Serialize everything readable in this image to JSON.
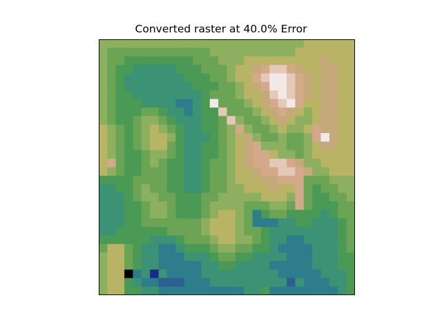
{
  "chart_data": {
    "type": "heatmap",
    "title": "Converted raster at 40.0% Error",
    "xlabel": "",
    "ylabel": "",
    "axes_visible": false,
    "grid": false,
    "colormap": "gist_earth",
    "colors": {
      "water_dark": "#1a2a8c",
      "water": "#2e7d8c",
      "low": "#4a9a55",
      "mid": "#b9b465",
      "high": "#d4a98a",
      "peak": "#f3eae8",
      "hole": "#000000"
    },
    "palette": [
      "#000000",
      "#1a2a8c",
      "#2c5f8f",
      "#2e7d8c",
      "#3b9275",
      "#4a9a55",
      "#6aa454",
      "#8db060",
      "#b9b465",
      "#c6a97a",
      "#d4a98a",
      "#e4c8b8",
      "#f3eae8"
    ],
    "grid_size": [
      30,
      30
    ],
    "values": [
      [
        7,
        7,
        7,
        7,
        7,
        7,
        7,
        7,
        7,
        7,
        7,
        7,
        7,
        7,
        7,
        7,
        7,
        7,
        7,
        7,
        7,
        7,
        7,
        7,
        8,
        8,
        8,
        8,
        8,
        8
      ],
      [
        7,
        6,
        6,
        6,
        6,
        6,
        6,
        6,
        6,
        6,
        6,
        6,
        6,
        7,
        7,
        7,
        7,
        7,
        7,
        7,
        7,
        7,
        7,
        8,
        8,
        8,
        8,
        8,
        8,
        8
      ],
      [
        7,
        6,
        6,
        5,
        5,
        5,
        5,
        5,
        5,
        5,
        5,
        6,
        6,
        6,
        7,
        7,
        7,
        8,
        8,
        8,
        8,
        8,
        8,
        8,
        8,
        8,
        9,
        8,
        8,
        8
      ],
      [
        7,
        6,
        5,
        5,
        4,
        4,
        4,
        4,
        4,
        5,
        5,
        5,
        6,
        6,
        6,
        7,
        8,
        8,
        9,
        10,
        11,
        11,
        10,
        9,
        8,
        8,
        9,
        9,
        8,
        8
      ],
      [
        7,
        6,
        5,
        4,
        4,
        4,
        4,
        4,
        4,
        4,
        5,
        5,
        5,
        6,
        6,
        7,
        8,
        8,
        10,
        11,
        12,
        12,
        11,
        10,
        9,
        8,
        9,
        9,
        8,
        8
      ],
      [
        7,
        6,
        5,
        4,
        4,
        4,
        4,
        4,
        4,
        4,
        4,
        5,
        5,
        5,
        6,
        6,
        7,
        8,
        9,
        10,
        12,
        12,
        11,
        10,
        9,
        8,
        9,
        9,
        8,
        8
      ],
      [
        7,
        6,
        5,
        5,
        4,
        4,
        4,
        4,
        4,
        4,
        4,
        4,
        5,
        6,
        6,
        6,
        7,
        8,
        8,
        9,
        11,
        12,
        11,
        10,
        9,
        8,
        9,
        9,
        8,
        8
      ],
      [
        7,
        6,
        5,
        5,
        5,
        4,
        4,
        4,
        4,
        3,
        3,
        4,
        5,
        12,
        6,
        6,
        6,
        7,
        8,
        9,
        10,
        11,
        12,
        10,
        8,
        8,
        9,
        9,
        8,
        8
      ],
      [
        7,
        6,
        5,
        5,
        5,
        6,
        6,
        5,
        4,
        4,
        3,
        4,
        5,
        5,
        11,
        6,
        6,
        6,
        7,
        8,
        9,
        10,
        9,
        8,
        7,
        8,
        9,
        9,
        8,
        8
      ],
      [
        7,
        6,
        5,
        5,
        6,
        7,
        7,
        6,
        5,
        4,
        4,
        4,
        5,
        5,
        6,
        11,
        7,
        6,
        6,
        7,
        8,
        9,
        8,
        7,
        7,
        8,
        9,
        9,
        8,
        8
      ],
      [
        8,
        7,
        6,
        5,
        6,
        7,
        8,
        7,
        6,
        5,
        4,
        4,
        5,
        5,
        6,
        7,
        10,
        7,
        6,
        6,
        7,
        8,
        7,
        7,
        8,
        10,
        9,
        9,
        8,
        8
      ],
      [
        8,
        7,
        6,
        5,
        6,
        7,
        8,
        8,
        7,
        5,
        4,
        4,
        4,
        5,
        6,
        7,
        8,
        9,
        7,
        6,
        6,
        7,
        6,
        6,
        7,
        10,
        12,
        9,
        8,
        8
      ],
      [
        8,
        7,
        6,
        5,
        6,
        7,
        8,
        8,
        6,
        5,
        4,
        4,
        5,
        5,
        6,
        7,
        8,
        9,
        10,
        7,
        7,
        7,
        6,
        6,
        7,
        8,
        9,
        9,
        8,
        8
      ],
      [
        8,
        7,
        6,
        5,
        5,
        6,
        7,
        7,
        6,
        5,
        4,
        4,
        5,
        5,
        6,
        7,
        8,
        9,
        10,
        10,
        8,
        7,
        7,
        6,
        7,
        8,
        8,
        8,
        8,
        8
      ],
      [
        8,
        10,
        6,
        5,
        5,
        6,
        7,
        6,
        5,
        5,
        4,
        4,
        5,
        6,
        6,
        7,
        8,
        9,
        10,
        10,
        11,
        11,
        10,
        9,
        7,
        7,
        8,
        8,
        8,
        8
      ],
      [
        8,
        7,
        6,
        5,
        5,
        6,
        6,
        6,
        5,
        5,
        4,
        4,
        5,
        6,
        6,
        7,
        8,
        8,
        9,
        10,
        10,
        11,
        11,
        10,
        9,
        7,
        7,
        8,
        8,
        8
      ],
      [
        5,
        5,
        5,
        5,
        6,
        6,
        6,
        6,
        5,
        5,
        4,
        4,
        5,
        6,
        6,
        7,
        8,
        8,
        8,
        9,
        9,
        10,
        10,
        10,
        6,
        6,
        6,
        7,
        7,
        7
      ],
      [
        4,
        4,
        5,
        5,
        6,
        7,
        6,
        6,
        5,
        5,
        4,
        4,
        5,
        6,
        6,
        7,
        7,
        8,
        8,
        8,
        9,
        8,
        8,
        10,
        6,
        5,
        6,
        6,
        7,
        7
      ],
      [
        4,
        4,
        4,
        5,
        6,
        7,
        7,
        6,
        6,
        5,
        5,
        5,
        6,
        6,
        7,
        7,
        7,
        7,
        7,
        8,
        8,
        8,
        7,
        10,
        6,
        5,
        5,
        6,
        6,
        7
      ],
      [
        4,
        4,
        4,
        5,
        5,
        6,
        7,
        7,
        6,
        5,
        5,
        5,
        6,
        7,
        7,
        7,
        7,
        6,
        6,
        6,
        7,
        7,
        6,
        10,
        6,
        5,
        5,
        5,
        6,
        6
      ],
      [
        4,
        4,
        4,
        5,
        5,
        6,
        7,
        7,
        6,
        5,
        5,
        5,
        6,
        7,
        8,
        8,
        7,
        6,
        3,
        5,
        6,
        6,
        5,
        5,
        5,
        5,
        4,
        5,
        6,
        6
      ],
      [
        4,
        4,
        4,
        5,
        5,
        6,
        6,
        6,
        6,
        6,
        6,
        6,
        7,
        8,
        8,
        8,
        7,
        6,
        3,
        3,
        3,
        4,
        4,
        5,
        5,
        4,
        4,
        4,
        5,
        6
      ],
      [
        4,
        4,
        5,
        5,
        5,
        5,
        5,
        5,
        6,
        6,
        6,
        6,
        7,
        8,
        8,
        8,
        7,
        6,
        6,
        5,
        4,
        4,
        4,
        4,
        4,
        4,
        4,
        4,
        5,
        6
      ],
      [
        5,
        5,
        5,
        5,
        5,
        5,
        4,
        4,
        4,
        5,
        6,
        6,
        6,
        7,
        8,
        8,
        7,
        7,
        6,
        5,
        4,
        4,
        3,
        3,
        4,
        4,
        4,
        4,
        5,
        6
      ],
      [
        6,
        8,
        8,
        6,
        5,
        4,
        4,
        3,
        3,
        4,
        5,
        5,
        5,
        6,
        7,
        7,
        6,
        6,
        5,
        5,
        4,
        3,
        3,
        3,
        3,
        4,
        4,
        4,
        5,
        6
      ],
      [
        7,
        8,
        8,
        6,
        5,
        4,
        4,
        3,
        3,
        3,
        4,
        4,
        4,
        5,
        6,
        6,
        5,
        5,
        4,
        4,
        4,
        4,
        3,
        3,
        3,
        4,
        4,
        4,
        5,
        5
      ],
      [
        7,
        8,
        8,
        6,
        5,
        4,
        4,
        3,
        3,
        3,
        3,
        3,
        4,
        4,
        5,
        5,
        4,
        4,
        4,
        4,
        3,
        3,
        3,
        3,
        3,
        4,
        4,
        4,
        5,
        5
      ],
      [
        7,
        8,
        8,
        0,
        3,
        4,
        1,
        4,
        3,
        3,
        3,
        3,
        4,
        4,
        4,
        4,
        4,
        4,
        4,
        4,
        4,
        3,
        3,
        3,
        3,
        3,
        4,
        4,
        4,
        5
      ],
      [
        7,
        8,
        8,
        5,
        4,
        3,
        3,
        2,
        2,
        2,
        3,
        3,
        3,
        4,
        4,
        4,
        4,
        4,
        4,
        4,
        4,
        4,
        2,
        4,
        3,
        3,
        3,
        4,
        4,
        5
      ],
      [
        7,
        8,
        8,
        5,
        5,
        4,
        4,
        3,
        3,
        3,
        3,
        3,
        3,
        3,
        3,
        3,
        3,
        4,
        4,
        5,
        3,
        3,
        3,
        3,
        3,
        3,
        3,
        3,
        4,
        5
      ]
    ]
  }
}
